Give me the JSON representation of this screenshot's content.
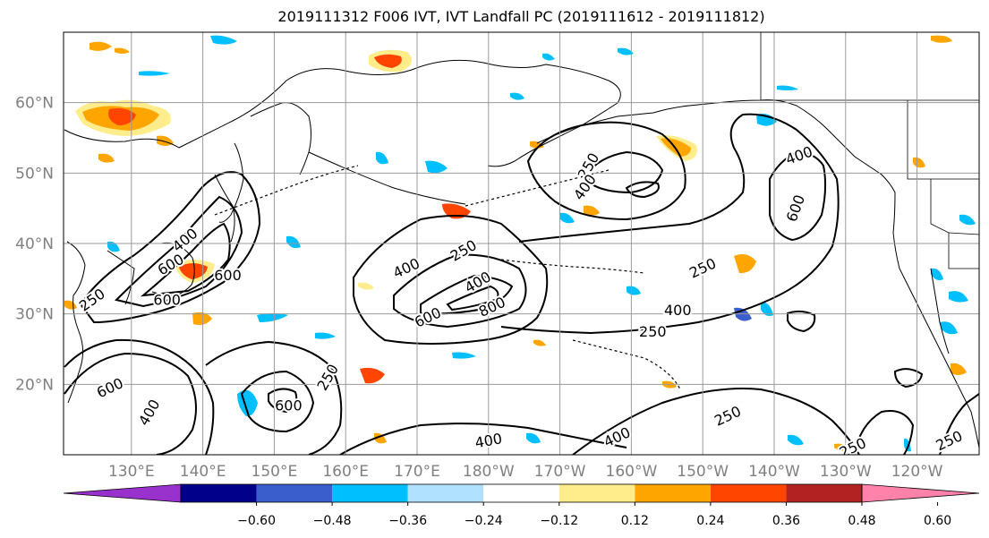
{
  "title": "2019111312 F006 IVT, IVT Landfall PC (2019111612 - 2019111812)",
  "map": {
    "lat_ticks": [
      {
        "label": "60°N",
        "lat": 60
      },
      {
        "label": "50°N",
        "lat": 50
      },
      {
        "label": "40°N",
        "lat": 40
      },
      {
        "label": "30°N",
        "lat": 30
      },
      {
        "label": "20°N",
        "lat": 20
      }
    ],
    "lon_ticks": [
      {
        "label": "130°E",
        "lon": 130
      },
      {
        "label": "140°E",
        "lon": 140
      },
      {
        "label": "150°E",
        "lon": 150
      },
      {
        "label": "160°E",
        "lon": 160
      },
      {
        "label": "170°E",
        "lon": 170
      },
      {
        "label": "180°W",
        "lon": 180
      },
      {
        "label": "170°W",
        "lon": 190
      },
      {
        "label": "160°W",
        "lon": 200
      },
      {
        "label": "150°W",
        "lon": 210
      },
      {
        "label": "140°W",
        "lon": 220
      },
      {
        "label": "130°W",
        "lon": 230
      },
      {
        "label": "120°W",
        "lon": 240
      }
    ],
    "lon_range": [
      120.5,
      248.7
    ],
    "lat_range": [
      10,
      70
    ],
    "grid": true,
    "ivt_contour_labels": [
      {
        "text": "250",
        "lon": 124.5,
        "lat": 32.0,
        "rot": -35
      },
      {
        "text": "400",
        "lon": 137.5,
        "lat": 40.5,
        "rot": -40
      },
      {
        "text": "600",
        "lon": 135.5,
        "lat": 37.0,
        "rot": -30
      },
      {
        "text": "600",
        "lon": 135.0,
        "lat": 32.0,
        "rot": 0
      },
      {
        "text": "600",
        "lon": 143.5,
        "lat": 35.5,
        "rot": 0
      },
      {
        "text": "600",
        "lon": 127.0,
        "lat": 19.5,
        "rot": -25
      },
      {
        "text": "400",
        "lon": 132.5,
        "lat": 16.0,
        "rot": -60
      },
      {
        "text": "250",
        "lon": 157.5,
        "lat": 21.0,
        "rot": -60
      },
      {
        "text": "600",
        "lon": 152.0,
        "lat": 17.0,
        "rot": 0
      },
      {
        "text": "400",
        "lon": 168.5,
        "lat": 36.5,
        "rot": -25
      },
      {
        "text": "250",
        "lon": 176.5,
        "lat": 39.0,
        "rot": -30
      },
      {
        "text": "400",
        "lon": 178.5,
        "lat": 34.5,
        "rot": -30
      },
      {
        "text": "800",
        "lon": 180.5,
        "lat": 31.0,
        "rot": -25
      },
      {
        "text": "600",
        "lon": 171.5,
        "lat": 29.5,
        "rot": -25
      },
      {
        "text": "250",
        "lon": 194.0,
        "lat": 51.0,
        "rot": -60
      },
      {
        "text": "400",
        "lon": 193.5,
        "lat": 48.0,
        "rot": -55
      },
      {
        "text": "250",
        "lon": 210.0,
        "lat": 36.5,
        "rot": -25
      },
      {
        "text": "400",
        "lon": 206.5,
        "lat": 30.5,
        "rot": 0
      },
      {
        "text": "250",
        "lon": 203.0,
        "lat": 27.5,
        "rot": 0
      },
      {
        "text": "400",
        "lon": 223.5,
        "lat": 52.5,
        "rot": -20
      },
      {
        "text": "600",
        "lon": 223.0,
        "lat": 45.0,
        "rot": -70
      },
      {
        "text": "250",
        "lon": 213.5,
        "lat": 15.5,
        "rot": -25
      },
      {
        "text": "400",
        "lon": 198.0,
        "lat": 12.5,
        "rot": -25
      },
      {
        "text": "400",
        "lon": 180.0,
        "lat": 12.0,
        "rot": -10
      },
      {
        "text": "250",
        "lon": 231.0,
        "lat": 11.0,
        "rot": -25
      },
      {
        "text": "250",
        "lon": 244.5,
        "lat": 12.0,
        "rot": -25
      }
    ]
  },
  "colorbar": {
    "colors": [
      "#9932cc",
      "#00008b",
      "#3a5fcd",
      "#00bfff",
      "#b0e2ff",
      "#ffffff",
      "#ffec8b",
      "#ffa500",
      "#ff4500",
      "#b22222",
      "#ff82ab"
    ],
    "tick_labels": [
      "−0.60",
      "−0.48",
      "−0.36",
      "−0.24",
      "−0.12",
      "0.12",
      "0.24",
      "0.36",
      "0.48",
      "0.60"
    ],
    "extend": "both"
  }
}
